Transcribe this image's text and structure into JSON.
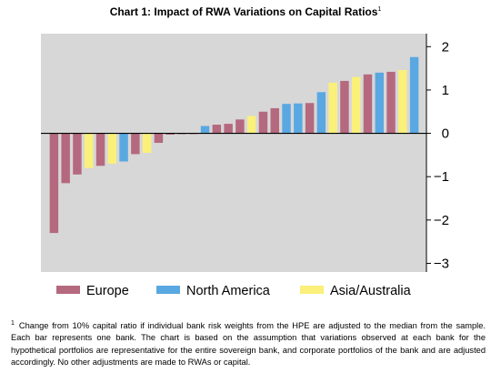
{
  "title": "Chart 1: Impact of RWA Variations on Capital Ratios",
  "title_note": "1",
  "footnote_marker": "1",
  "footnote": "Change from 10% capital ratio if individual bank risk weights from the HPE are adjusted to the median from the sample. Each bar represents one bank. The chart is based on the assumption that variations observed at each bank for the hypothetical portfolios are representative for the entire sovereign bank, and corporate portfolios of the bank and are adjusted accordingly. No other adjustments are made to RWAs or capital.",
  "colors": {
    "Europe": "#b5697e",
    "North America": "#5aa8e2",
    "Asia/Australia": "#faf07a",
    "plot_bg": "#d7d7d7"
  },
  "chart_data": {
    "type": "bar",
    "ylim": [
      -3.2,
      2.3
    ],
    "yticks": [
      2,
      1,
      0,
      -1,
      -2,
      -3
    ],
    "ytick_labels": [
      "2",
      "1",
      "0",
      "−1",
      "−2",
      "−3"
    ],
    "legend": [
      "Europe",
      "North America",
      "Asia/Australia"
    ],
    "legend_position": "bottom",
    "grid": false,
    "bars": [
      {
        "region": "Europe",
        "value": -2.3
      },
      {
        "region": "Europe",
        "value": -1.15
      },
      {
        "region": "Europe",
        "value": -0.95
      },
      {
        "region": "Asia/Australia",
        "value": -0.8
      },
      {
        "region": "Europe",
        "value": -0.75
      },
      {
        "region": "Asia/Australia",
        "value": -0.7
      },
      {
        "region": "North America",
        "value": -0.65
      },
      {
        "region": "Europe",
        "value": -0.48
      },
      {
        "region": "Asia/Australia",
        "value": -0.45
      },
      {
        "region": "Europe",
        "value": -0.22
      },
      {
        "region": "Europe",
        "value": -0.03
      },
      {
        "region": "Europe",
        "value": -0.02
      },
      {
        "region": "Europe",
        "value": -0.01
      },
      {
        "region": "North America",
        "value": 0.17
      },
      {
        "region": "Europe",
        "value": 0.2
      },
      {
        "region": "Europe",
        "value": 0.22
      },
      {
        "region": "Europe",
        "value": 0.32
      },
      {
        "region": "Asia/Australia",
        "value": 0.4
      },
      {
        "region": "Europe",
        "value": 0.5
      },
      {
        "region": "Europe",
        "value": 0.58
      },
      {
        "region": "North America",
        "value": 0.68
      },
      {
        "region": "North America",
        "value": 0.69
      },
      {
        "region": "Europe",
        "value": 0.7
      },
      {
        "region": "North America",
        "value": 0.95
      },
      {
        "region": "Asia/Australia",
        "value": 1.17
      },
      {
        "region": "Europe",
        "value": 1.21
      },
      {
        "region": "Asia/Australia",
        "value": 1.3
      },
      {
        "region": "Europe",
        "value": 1.36
      },
      {
        "region": "North America",
        "value": 1.4
      },
      {
        "region": "Europe",
        "value": 1.42
      },
      {
        "region": "Asia/Australia",
        "value": 1.46
      },
      {
        "region": "North America",
        "value": 1.76
      }
    ]
  }
}
